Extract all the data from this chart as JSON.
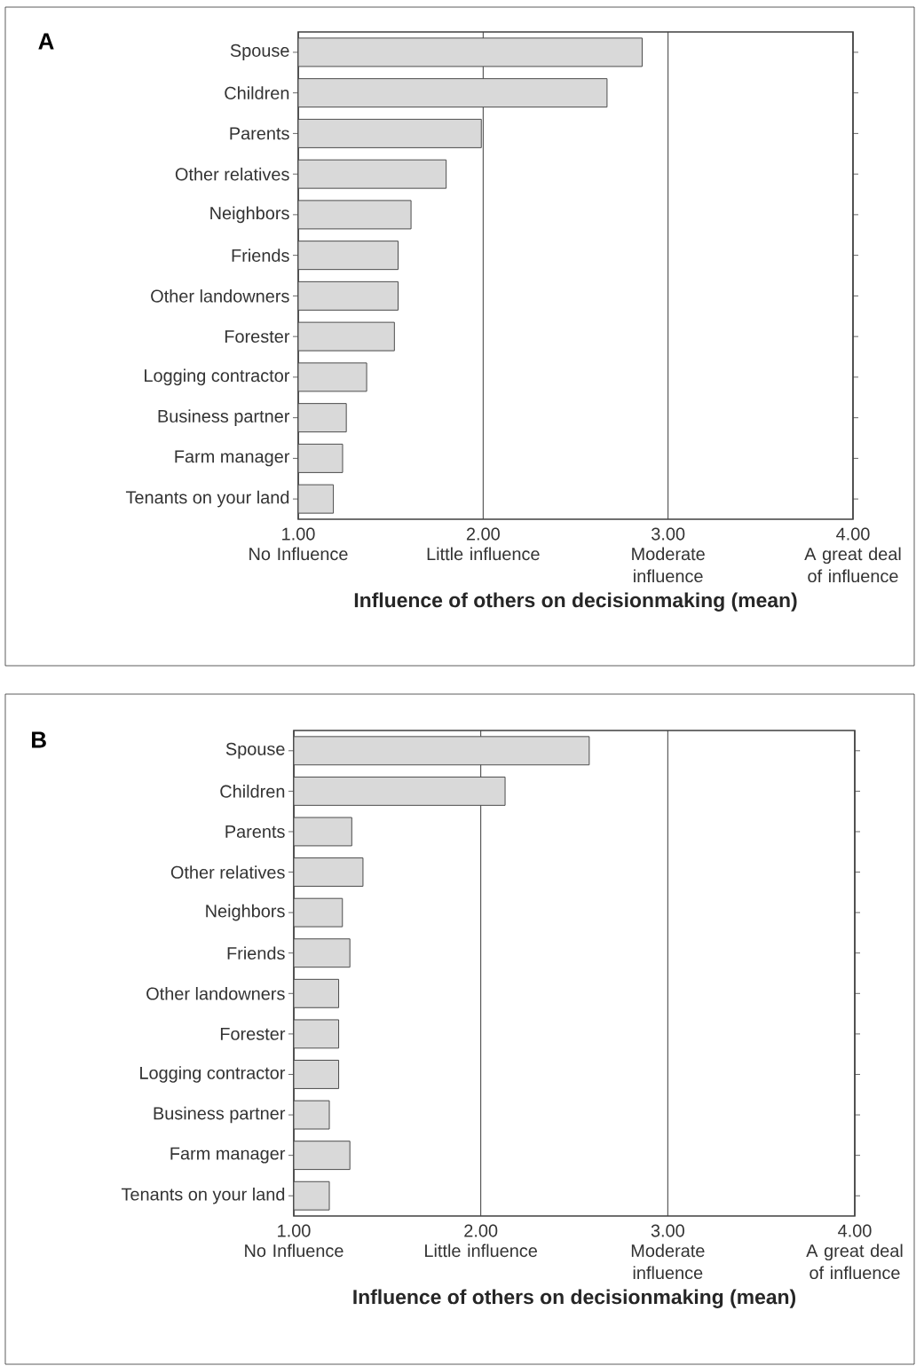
{
  "chart_data": [
    {
      "type": "bar",
      "orientation": "horizontal",
      "title": "A",
      "xlabel": "Influence of others on decisionmaking (mean)",
      "categories": [
        "Spouse",
        "Children",
        "Parents",
        "Other relatives",
        "Neighbors",
        "Friends",
        "Other landowners",
        "Forester",
        "Logging contractor",
        "Business partner",
        "Farm manager",
        "Tenants on your land"
      ],
      "values": [
        2.86,
        2.67,
        1.99,
        1.8,
        1.61,
        1.54,
        1.54,
        1.52,
        1.37,
        1.26,
        1.24,
        1.19
      ],
      "color": "#d9d9d9",
      "xlim": [
        1,
        4
      ],
      "xticks": [
        {
          "value": 1,
          "label": "1.00"
        },
        {
          "value": 2,
          "label": "2.00"
        },
        {
          "value": 3,
          "label": "3.00"
        },
        {
          "value": 4,
          "label": "4.00"
        }
      ],
      "grid": "x",
      "annotations": [
        "No Influence",
        "Little influence",
        "Moderate influence",
        "A great deal of influence"
      ]
    },
    {
      "type": "bar",
      "orientation": "horizontal",
      "title": "B",
      "xlabel": "Influence of others on decisionmaking (mean)",
      "categories": [
        "Spouse",
        "Children",
        "Parents",
        "Other relatives",
        "Neighbors",
        "Friends",
        "Other landowners",
        "Forester",
        "Logging contractor",
        "Business partner",
        "Farm manager",
        "Tenants on your land"
      ],
      "values": [
        2.58,
        2.13,
        1.31,
        1.37,
        1.26,
        1.3,
        1.24,
        1.24,
        1.24,
        1.19,
        1.3,
        1.19
      ],
      "color": "#d9d9d9",
      "xlim": [
        1,
        4
      ],
      "xticks": [
        {
          "value": 1,
          "label": "1.00"
        },
        {
          "value": 2,
          "label": "2.00"
        },
        {
          "value": 3,
          "label": "3.00"
        },
        {
          "value": 4,
          "label": "4.00"
        }
      ],
      "grid": "x",
      "annotations": [
        "No Influence",
        "Little influence",
        "Moderate influence",
        "A great deal of influence"
      ]
    }
  ]
}
